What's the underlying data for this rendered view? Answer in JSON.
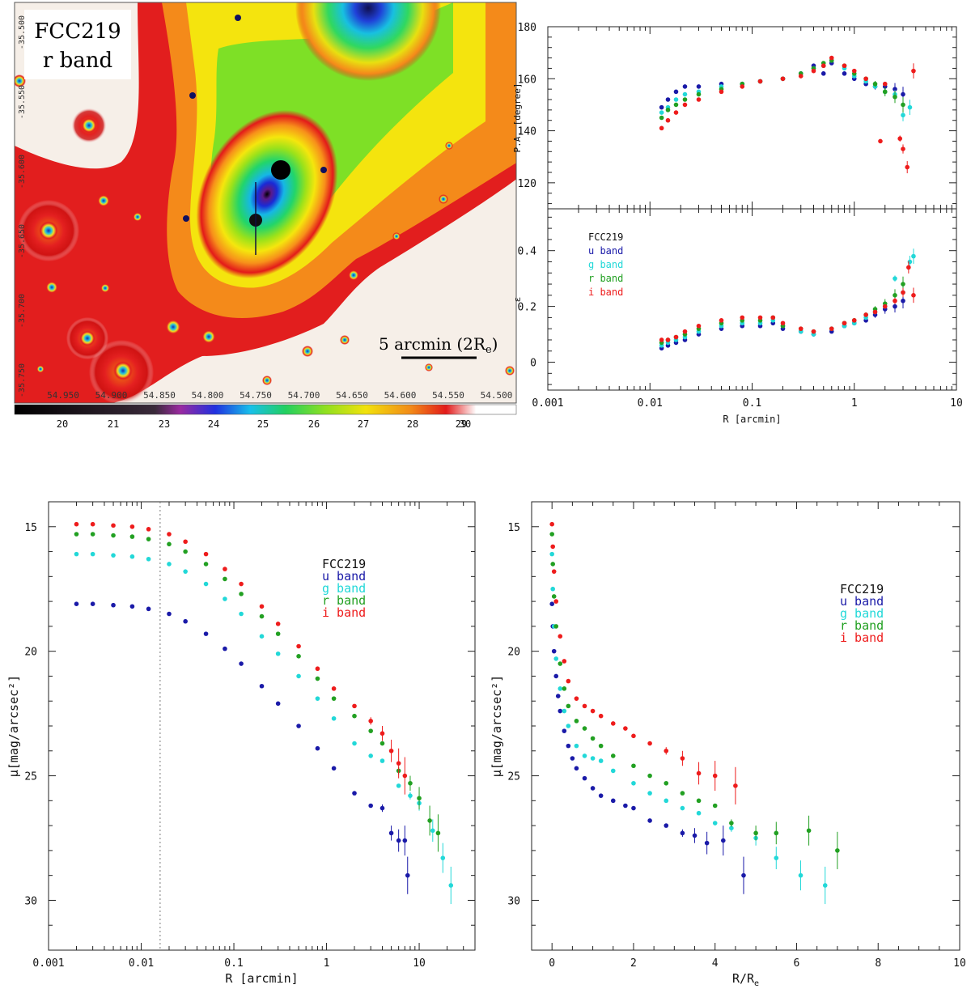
{
  "image_panel": {
    "title_line1": "FCC219",
    "title_line2": "r band",
    "scalebar_label": "5 arcmin (2R",
    "scalebar_sub": "e",
    "ra_ticks": [
      "54.950",
      "54.900",
      "54.850",
      "54.800",
      "54.750",
      "54.700",
      "54.650",
      "54.600",
      "54.550",
      "54.500"
    ],
    "dec_ticks": [
      "-35.500",
      "-35.550",
      "-35.600",
      "-35.650",
      "-35.700",
      "-35.750"
    ],
    "colorbar_ticks": [
      "20",
      "21",
      "23",
      "24",
      "25",
      "26",
      "27",
      "28",
      "29",
      "30"
    ]
  },
  "colors": {
    "u": "#1a1aa8",
    "g": "#22d8d8",
    "r": "#22a022",
    "i": "#ee1c1c"
  },
  "chart_data": [
    {
      "id": "pa",
      "type": "scatter",
      "xscale": "log",
      "xlim": [
        0.001,
        10
      ],
      "ylim": [
        110,
        180
      ],
      "ylabel": "P.A. [degree]",
      "yticks": [
        "120",
        "140",
        "160",
        "180"
      ],
      "series": [
        {
          "name": "u band",
          "x": [
            0.013,
            0.015,
            0.018,
            0.022,
            0.03,
            0.05,
            0.08,
            0.12,
            0.2,
            0.3,
            0.4,
            0.5,
            0.6,
            0.8,
            1.0,
            1.3,
            1.6,
            2.0,
            2.5,
            3.0
          ],
          "y": [
            149,
            152,
            155,
            157,
            157,
            158,
            158,
            159,
            160,
            162,
            165,
            162,
            166,
            162,
            160,
            158,
            157,
            157,
            156,
            154
          ]
        },
        {
          "name": "g band",
          "x": [
            0.013,
            0.015,
            0.018,
            0.022,
            0.03,
            0.05,
            0.08,
            0.12,
            0.2,
            0.3,
            0.4,
            0.5,
            0.6,
            0.8,
            1.0,
            1.3,
            1.6,
            2.0,
            2.5,
            3.0,
            3.5
          ],
          "y": [
            147,
            149,
            152,
            154,
            155,
            157,
            158,
            159,
            160,
            162,
            164,
            165,
            167,
            164,
            161,
            159,
            157,
            155,
            154,
            146,
            149
          ]
        },
        {
          "name": "r band",
          "x": [
            0.013,
            0.015,
            0.018,
            0.022,
            0.03,
            0.05,
            0.08,
            0.12,
            0.2,
            0.3,
            0.4,
            0.5,
            0.6,
            0.8,
            1.0,
            1.3,
            1.6,
            2.0,
            2.5,
            3.0
          ],
          "y": [
            145,
            148,
            150,
            152,
            154,
            156,
            158,
            159,
            160,
            162,
            164,
            166,
            167,
            165,
            162,
            160,
            158,
            155,
            153,
            150
          ]
        },
        {
          "name": "i band",
          "x": [
            0.013,
            0.015,
            0.018,
            0.022,
            0.03,
            0.05,
            0.08,
            0.12,
            0.2,
            0.3,
            0.4,
            0.5,
            0.6,
            0.8,
            1.0,
            1.3,
            1.8,
            2.0,
            2.8,
            3.0,
            3.3,
            3.8
          ],
          "y": [
            141,
            144,
            147,
            150,
            152,
            155,
            157,
            159,
            160,
            161,
            163,
            165,
            168,
            165,
            163,
            160,
            136,
            158,
            137,
            133,
            126,
            163
          ]
        }
      ]
    },
    {
      "id": "ell",
      "type": "scatter",
      "xscale": "log",
      "xlim": [
        0.001,
        10
      ],
      "ylim": [
        -0.1,
        0.55
      ],
      "ylabel": "ε",
      "xlabel": "R [arcmin]",
      "xticks": [
        "0.001",
        "0.01",
        "0.1",
        "1",
        "10"
      ],
      "yticks": [
        "0",
        "0.2",
        "0.4"
      ],
      "legend_title": "FCC219",
      "series": [
        {
          "name": "u band",
          "x": [
            0.013,
            0.015,
            0.018,
            0.022,
            0.03,
            0.05,
            0.08,
            0.12,
            0.16,
            0.2,
            0.3,
            0.4,
            0.6,
            0.8,
            1.0,
            1.3,
            1.6,
            2.0,
            2.5,
            3.0
          ],
          "y": [
            0.05,
            0.06,
            0.07,
            0.08,
            0.1,
            0.12,
            0.13,
            0.13,
            0.14,
            0.12,
            0.11,
            0.1,
            0.11,
            0.13,
            0.14,
            0.15,
            0.17,
            0.19,
            0.2,
            0.22
          ]
        },
        {
          "name": "g band",
          "x": [
            0.013,
            0.015,
            0.018,
            0.022,
            0.03,
            0.05,
            0.08,
            0.12,
            0.16,
            0.2,
            0.3,
            0.4,
            0.6,
            0.8,
            1.0,
            1.3,
            1.6,
            2.0,
            2.5,
            3.0,
            3.5,
            3.8
          ],
          "y": [
            0.06,
            0.07,
            0.08,
            0.09,
            0.11,
            0.13,
            0.14,
            0.14,
            0.15,
            0.13,
            0.11,
            0.1,
            0.12,
            0.13,
            0.14,
            0.16,
            0.18,
            0.2,
            0.3,
            0.25,
            0.36,
            0.38
          ]
        },
        {
          "name": "r band",
          "x": [
            0.013,
            0.015,
            0.018,
            0.022,
            0.03,
            0.05,
            0.08,
            0.12,
            0.16,
            0.2,
            0.3,
            0.4,
            0.6,
            0.8,
            1.0,
            1.3,
            1.6,
            2.0,
            2.5,
            3.0
          ],
          "y": [
            0.07,
            0.08,
            0.09,
            0.1,
            0.12,
            0.14,
            0.15,
            0.15,
            0.16,
            0.13,
            0.12,
            0.11,
            0.12,
            0.14,
            0.15,
            0.17,
            0.19,
            0.21,
            0.24,
            0.28
          ]
        },
        {
          "name": "i band",
          "x": [
            0.013,
            0.015,
            0.018,
            0.022,
            0.03,
            0.05,
            0.08,
            0.12,
            0.16,
            0.2,
            0.3,
            0.4,
            0.6,
            0.8,
            1.0,
            1.3,
            1.6,
            2.0,
            2.5,
            3.0,
            3.4,
            3.8
          ],
          "y": [
            0.08,
            0.08,
            0.09,
            0.11,
            0.13,
            0.15,
            0.16,
            0.16,
            0.16,
            0.14,
            0.12,
            0.11,
            0.12,
            0.14,
            0.15,
            0.17,
            0.18,
            0.2,
            0.22,
            0.25,
            0.34,
            0.24
          ]
        }
      ]
    },
    {
      "id": "sb_log",
      "type": "scatter",
      "xscale": "log",
      "xlim": [
        0.001,
        40
      ],
      "ylim": [
        32,
        14
      ],
      "xlabel": "R [arcmin]",
      "ylabel": "μ[mag/arcsec²]",
      "xticks": [
        "0.001",
        "0.01",
        "0.1",
        "1",
        "10"
      ],
      "yticks": [
        "15",
        "20",
        "25",
        "30"
      ],
      "vline_x": 0.016,
      "legend_title": "FCC219",
      "series": [
        {
          "name": "u band",
          "x": [
            0.002,
            0.003,
            0.005,
            0.008,
            0.012,
            0.02,
            0.03,
            0.05,
            0.08,
            0.12,
            0.2,
            0.3,
            0.5,
            0.8,
            1.2,
            2.0,
            3.0,
            4.0,
            5.0,
            6.0,
            7.0,
            7.5
          ],
          "y": [
            18.1,
            18.1,
            18.15,
            18.2,
            18.3,
            18.5,
            18.8,
            19.3,
            19.9,
            20.5,
            21.4,
            22.1,
            23.0,
            23.9,
            24.7,
            25.7,
            26.2,
            26.3,
            27.3,
            27.6,
            27.6,
            29.0
          ]
        },
        {
          "name": "g band",
          "x": [
            0.002,
            0.003,
            0.005,
            0.008,
            0.012,
            0.02,
            0.03,
            0.05,
            0.08,
            0.12,
            0.2,
            0.3,
            0.5,
            0.8,
            1.2,
            2.0,
            3.0,
            4.0,
            6.0,
            8.0,
            10,
            14,
            18,
            22
          ],
          "y": [
            16.1,
            16.1,
            16.15,
            16.2,
            16.3,
            16.5,
            16.8,
            17.3,
            17.9,
            18.5,
            19.4,
            20.1,
            21.0,
            21.9,
            22.7,
            23.7,
            24.2,
            24.4,
            25.4,
            25.8,
            26.1,
            27.2,
            28.3,
            29.4
          ]
        },
        {
          "name": "r band",
          "x": [
            0.002,
            0.003,
            0.005,
            0.008,
            0.012,
            0.02,
            0.03,
            0.05,
            0.08,
            0.12,
            0.2,
            0.3,
            0.5,
            0.8,
            1.2,
            2.0,
            3.0,
            4.0,
            6.0,
            8.0,
            10,
            13,
            16
          ],
          "y": [
            15.3,
            15.3,
            15.35,
            15.4,
            15.5,
            15.7,
            16.0,
            16.5,
            17.1,
            17.7,
            18.6,
            19.3,
            20.2,
            21.1,
            21.9,
            22.6,
            23.2,
            23.7,
            24.8,
            25.3,
            25.9,
            26.8,
            27.3
          ]
        },
        {
          "name": "i band",
          "x": [
            0.002,
            0.003,
            0.005,
            0.008,
            0.012,
            0.02,
            0.03,
            0.05,
            0.08,
            0.12,
            0.2,
            0.3,
            0.5,
            0.8,
            1.2,
            2.0,
            3.0,
            4.0,
            5.0,
            6.0,
            7.0
          ],
          "y": [
            14.9,
            14.9,
            14.95,
            15.0,
            15.1,
            15.3,
            15.6,
            16.1,
            16.7,
            17.3,
            18.2,
            18.9,
            19.8,
            20.7,
            21.5,
            22.2,
            22.8,
            23.3,
            24.0,
            24.5,
            25.0
          ]
        }
      ]
    },
    {
      "id": "sb_lin",
      "type": "scatter",
      "xscale": "linear",
      "xlim": [
        -0.5,
        10
      ],
      "ylim": [
        32,
        14
      ],
      "xlabel": "R/R",
      "xlabel_sub": "e",
      "ylabel": "μ[mag/arcsec²]",
      "xticks": [
        "0",
        "2",
        "4",
        "6",
        "8",
        "10"
      ],
      "yticks": [
        "15",
        "20",
        "25",
        "30"
      ],
      "legend_title": "FCC219",
      "series": [
        {
          "name": "u band",
          "x": [
            0.0,
            0.02,
            0.05,
            0.1,
            0.15,
            0.2,
            0.3,
            0.4,
            0.5,
            0.6,
            0.8,
            1.0,
            1.2,
            1.5,
            1.8,
            2.0,
            2.4,
            2.8,
            3.2,
            3.5,
            3.8,
            4.2,
            4.7
          ],
          "y": [
            18.1,
            19.0,
            20.0,
            21.0,
            21.8,
            22.4,
            23.2,
            23.8,
            24.3,
            24.7,
            25.1,
            25.5,
            25.8,
            26.0,
            26.2,
            26.3,
            26.8,
            27.0,
            27.3,
            27.4,
            27.7,
            27.6,
            29.0
          ]
        },
        {
          "name": "g band",
          "x": [
            0.0,
            0.02,
            0.05,
            0.1,
            0.2,
            0.3,
            0.4,
            0.6,
            0.8,
            1.0,
            1.2,
            1.5,
            2.0,
            2.4,
            2.8,
            3.2,
            3.6,
            4.0,
            4.4,
            5.0,
            5.5,
            6.1,
            6.7
          ],
          "y": [
            16.1,
            17.5,
            19.0,
            20.3,
            21.5,
            22.4,
            23.0,
            23.8,
            24.2,
            24.3,
            24.4,
            24.8,
            25.3,
            25.7,
            26.0,
            26.3,
            26.5,
            26.9,
            27.1,
            27.5,
            28.3,
            29.0,
            29.4
          ]
        },
        {
          "name": "r band",
          "x": [
            0.0,
            0.02,
            0.05,
            0.1,
            0.2,
            0.3,
            0.4,
            0.6,
            0.8,
            1.0,
            1.2,
            1.5,
            2.0,
            2.4,
            2.8,
            3.2,
            3.6,
            4.0,
            4.4,
            5.0,
            5.5,
            6.3,
            7.0
          ],
          "y": [
            15.3,
            16.5,
            17.8,
            19.0,
            20.5,
            21.5,
            22.2,
            22.8,
            23.1,
            23.5,
            23.8,
            24.2,
            24.6,
            25.0,
            25.3,
            25.7,
            26.0,
            26.2,
            26.9,
            27.3,
            27.3,
            27.2,
            28.0
          ]
        },
        {
          "name": "i band",
          "x": [
            0.0,
            0.02,
            0.05,
            0.1,
            0.2,
            0.3,
            0.4,
            0.6,
            0.8,
            1.0,
            1.2,
            1.5,
            1.8,
            2.0,
            2.4,
            2.8,
            3.2,
            3.6,
            4.0,
            4.5
          ],
          "y": [
            14.9,
            15.8,
            16.8,
            18.0,
            19.4,
            20.4,
            21.2,
            21.9,
            22.2,
            22.4,
            22.6,
            22.9,
            23.1,
            23.4,
            23.7,
            24.0,
            24.3,
            24.9,
            25.0,
            25.4
          ]
        }
      ]
    }
  ]
}
